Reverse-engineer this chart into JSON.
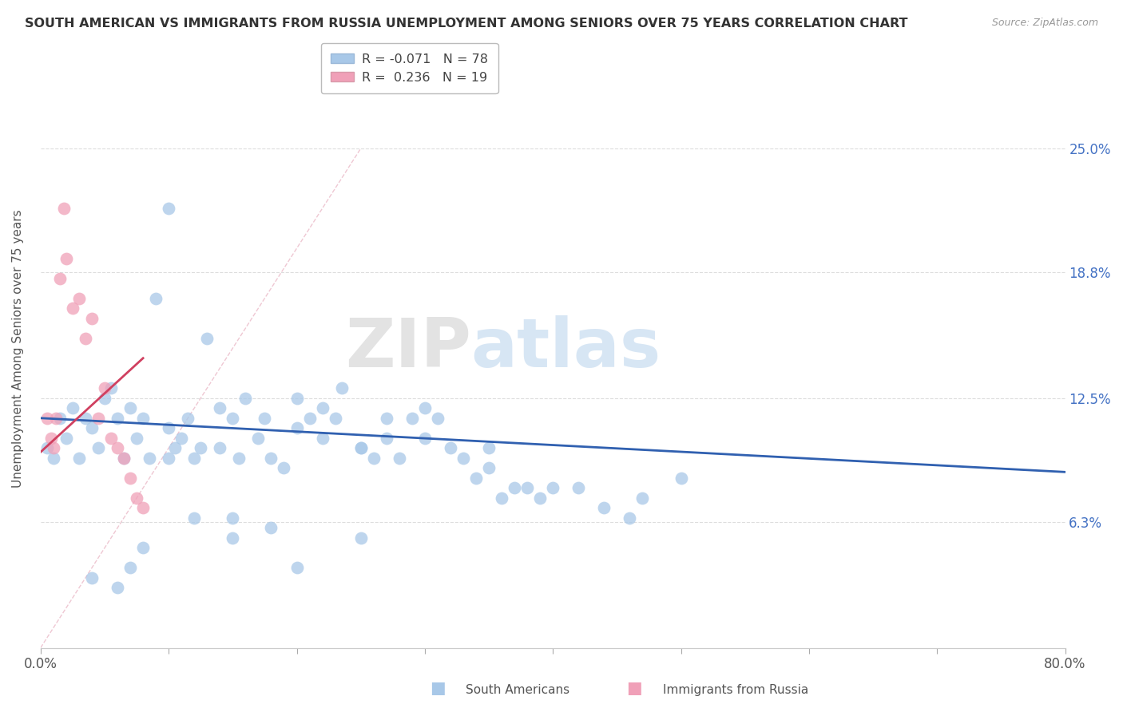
{
  "title": "SOUTH AMERICAN VS IMMIGRANTS FROM RUSSIA UNEMPLOYMENT AMONG SENIORS OVER 75 YEARS CORRELATION CHART",
  "source": "Source: ZipAtlas.com",
  "ylabel": "Unemployment Among Seniors over 75 years",
  "xlim": [
    0,
    0.8
  ],
  "ylim": [
    0,
    0.3
  ],
  "xtick_pos": [
    0.0,
    0.1,
    0.2,
    0.3,
    0.4,
    0.5,
    0.6,
    0.7,
    0.8
  ],
  "xticklabels": [
    "0.0%",
    "",
    "",
    "",
    "",
    "",
    "",
    "",
    "80.0%"
  ],
  "ytick_positions": [
    0.063,
    0.125,
    0.188,
    0.25
  ],
  "ytick_labels": [
    "6.3%",
    "12.5%",
    "18.8%",
    "25.0%"
  ],
  "r_blue": -0.071,
  "n_blue": 78,
  "r_pink": 0.236,
  "n_pink": 19,
  "color_blue": "#a8c8e8",
  "color_pink": "#f0a0b8",
  "line_color_blue": "#3060b0",
  "line_color_pink": "#d04060",
  "watermark_zip": "ZIP",
  "watermark_atlas": "atlas",
  "legend_label_blue": "South Americans",
  "legend_label_pink": "Immigrants from Russia",
  "blue_x": [
    0.005,
    0.01,
    0.015,
    0.02,
    0.025,
    0.03,
    0.035,
    0.04,
    0.045,
    0.05,
    0.055,
    0.06,
    0.065,
    0.07,
    0.075,
    0.08,
    0.085,
    0.09,
    0.1,
    0.1,
    0.105,
    0.11,
    0.115,
    0.12,
    0.125,
    0.13,
    0.14,
    0.14,
    0.15,
    0.155,
    0.16,
    0.17,
    0.175,
    0.18,
    0.19,
    0.2,
    0.2,
    0.21,
    0.22,
    0.23,
    0.235,
    0.25,
    0.26,
    0.27,
    0.28,
    0.29,
    0.3,
    0.31,
    0.32,
    0.33,
    0.34,
    0.35,
    0.36,
    0.37,
    0.38,
    0.39,
    0.4,
    0.42,
    0.44,
    0.46,
    0.47,
    0.5,
    0.1,
    0.22,
    0.25,
    0.27,
    0.3,
    0.35,
    0.12,
    0.15,
    0.18,
    0.08,
    0.2,
    0.07,
    0.06,
    0.04,
    0.15,
    0.25
  ],
  "blue_y": [
    0.1,
    0.095,
    0.115,
    0.105,
    0.12,
    0.095,
    0.115,
    0.11,
    0.1,
    0.125,
    0.13,
    0.115,
    0.095,
    0.12,
    0.105,
    0.115,
    0.095,
    0.175,
    0.095,
    0.11,
    0.1,
    0.105,
    0.115,
    0.095,
    0.1,
    0.155,
    0.1,
    0.12,
    0.115,
    0.095,
    0.125,
    0.105,
    0.115,
    0.095,
    0.09,
    0.125,
    0.11,
    0.115,
    0.12,
    0.115,
    0.13,
    0.1,
    0.095,
    0.105,
    0.095,
    0.115,
    0.105,
    0.115,
    0.1,
    0.095,
    0.085,
    0.09,
    0.075,
    0.08,
    0.08,
    0.075,
    0.08,
    0.08,
    0.07,
    0.065,
    0.075,
    0.085,
    0.22,
    0.105,
    0.1,
    0.115,
    0.12,
    0.1,
    0.065,
    0.055,
    0.06,
    0.05,
    0.04,
    0.04,
    0.03,
    0.035,
    0.065,
    0.055
  ],
  "pink_x": [
    0.005,
    0.008,
    0.01,
    0.012,
    0.015,
    0.018,
    0.02,
    0.025,
    0.03,
    0.035,
    0.04,
    0.045,
    0.05,
    0.055,
    0.06,
    0.065,
    0.07,
    0.075,
    0.08
  ],
  "pink_y": [
    0.115,
    0.105,
    0.1,
    0.115,
    0.185,
    0.22,
    0.195,
    0.17,
    0.175,
    0.155,
    0.165,
    0.115,
    0.13,
    0.105,
    0.1,
    0.095,
    0.085,
    0.075,
    0.07
  ],
  "blue_trend_x0": 0.0,
  "blue_trend_x1": 0.8,
  "blue_trend_y0": 0.115,
  "blue_trend_y1": 0.088,
  "pink_trend_x0": 0.0,
  "pink_trend_x1": 0.08,
  "pink_trend_y0": 0.098,
  "pink_trend_y1": 0.145,
  "diag_line_x0": 0.0,
  "diag_line_x1": 0.25,
  "diag_line_y0": 0.0,
  "diag_line_y1": 0.25
}
